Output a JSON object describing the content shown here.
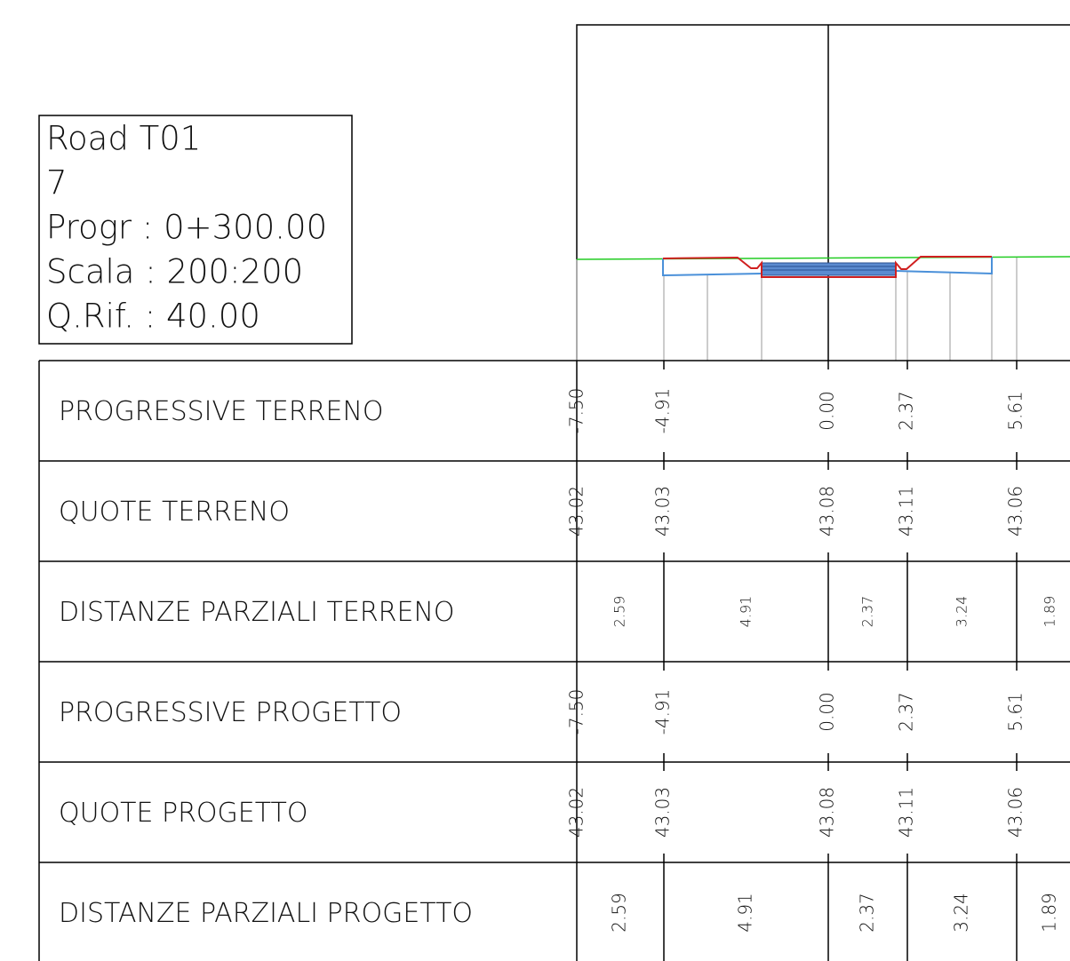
{
  "info": [
    "Road T01",
    "7",
    "Progr : 0+300.00",
    "Scala : 200:200",
    "Q.Rif. : 40.00"
  ],
  "table": {
    "rows": [
      {
        "label": "PROGRESSIVE TERRENO",
        "values": [
          "-7.50",
          "-4.91",
          "0.00",
          "2.37",
          "5.61"
        ]
      },
      {
        "label": "QUOTE TERRENO",
        "values": [
          "43.02",
          "43.03",
          "43.08",
          "43.11",
          "43.06"
        ]
      },
      {
        "label": "DISTANZE PARZIALI TERRENO",
        "values": [
          "2.59",
          "4.91",
          "2.37",
          "3.24",
          "1.89"
        ]
      },
      {
        "label": "PROGRESSIVE PROGETTO",
        "values": [
          "-7.50",
          "-4.91",
          "0.00",
          "2.37",
          "5.61"
        ]
      },
      {
        "label": "QUOTE PROGETTO",
        "values": [
          "43.02",
          "43.03",
          "43.08",
          "43.11",
          "43.06"
        ]
      },
      {
        "label": "DISTANZE PARZIALI PROGETTO",
        "values": [
          "2.59",
          "4.91",
          "2.37",
          "3.24",
          "1.89"
        ]
      }
    ]
  }
}
